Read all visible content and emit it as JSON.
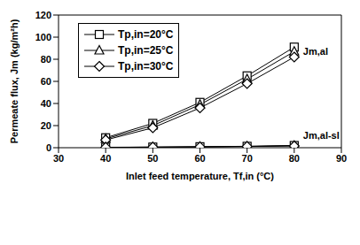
{
  "chart_data": {
    "type": "line",
    "x_label": "Inlet feed temperature, Tf,in (°C)",
    "y_label": "Permeate flux, Jm (kg/m²h)",
    "x": [
      40,
      50,
      60,
      70,
      80
    ],
    "xlim": [
      30,
      90
    ],
    "xticks": [
      30,
      40,
      50,
      60,
      70,
      80,
      90
    ],
    "ylim": [
      0,
      120
    ],
    "yticks": [
      0,
      20,
      40,
      60,
      80,
      100,
      120
    ],
    "grid": false,
    "legend": "upper left",
    "series": [
      {
        "name": "Tp,in=20°C",
        "color": "#000000",
        "marker": "square",
        "values": [
          9,
          22,
          41,
          65,
          91
        ]
      },
      {
        "name": "Tp,in=25°C",
        "color": "#000000",
        "marker": "triangle",
        "values": [
          8,
          20,
          39,
          62,
          87
        ]
      },
      {
        "name": "Tp,in=30°C",
        "color": "#000000",
        "marker": "diamond",
        "values": [
          7,
          18,
          36,
          58,
          82
        ]
      },
      {
        "color": "#000000",
        "marker": "square",
        "values": [
          0.4,
          0.6,
          0.9,
          1.3,
          2.0
        ]
      },
      {
        "color": "#000000",
        "marker": "triangle",
        "values": [
          0.3,
          0.5,
          0.8,
          1.2,
          1.8
        ]
      },
      {
        "color": "#000000",
        "marker": "diamond",
        "values": [
          0.3,
          0.5,
          0.7,
          1.1,
          1.6
        ]
      }
    ],
    "annotations": [
      {
        "text": "Jm,al",
        "series": 1
      },
      {
        "text": "Jm,al-sl",
        "series": 4
      }
    ]
  }
}
